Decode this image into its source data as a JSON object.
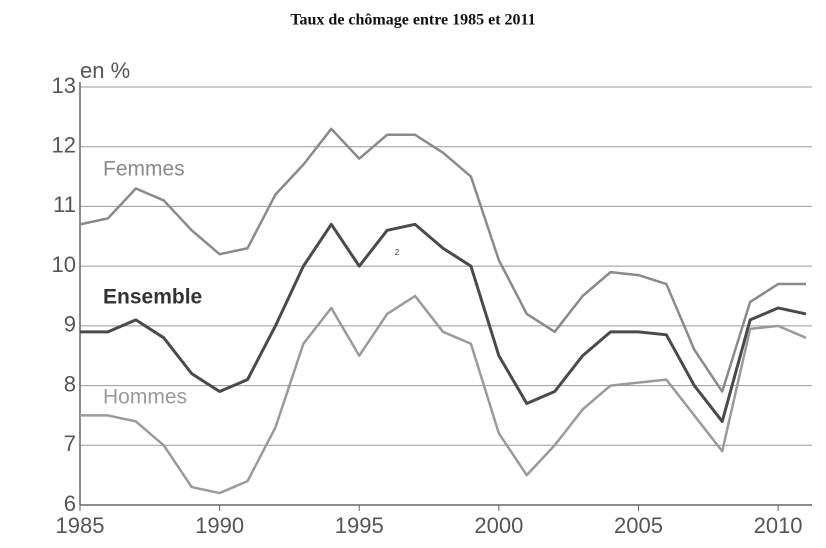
{
  "chart_data": {
    "type": "line",
    "title": "Taux de chômage entre 1985 et 2011",
    "y_label": "en %",
    "annotation": "2",
    "x": [
      1985,
      1986,
      1987,
      1988,
      1989,
      1990,
      1991,
      1992,
      1993,
      1994,
      1995,
      1996,
      1997,
      1998,
      1999,
      2000,
      2001,
      2002,
      2003,
      2004,
      2005,
      2006,
      2007,
      2008,
      2009,
      2010,
      2011
    ],
    "series": [
      {
        "name": "Femmes",
        "color": "#8a8a8a",
        "values": [
          10.7,
          10.8,
          11.3,
          11.1,
          10.6,
          10.2,
          10.3,
          11.2,
          11.7,
          12.3,
          11.8,
          12.2,
          12.2,
          11.9,
          11.5,
          10.1,
          9.2,
          8.9,
          9.5,
          9.9,
          9.85,
          9.7,
          8.6,
          7.9,
          9.4,
          9.7,
          9.7
        ]
      },
      {
        "name": "Ensemble",
        "color": "#4a4a4a",
        "values": [
          8.9,
          8.9,
          9.1,
          8.8,
          8.2,
          7.9,
          8.1,
          9.0,
          10.0,
          10.7,
          10.0,
          10.6,
          10.7,
          10.3,
          10.0,
          8.5,
          7.7,
          7.9,
          8.5,
          8.9,
          8.9,
          8.85,
          8.0,
          7.4,
          9.1,
          9.3,
          9.2
        ]
      },
      {
        "name": "Hommes",
        "color": "#9a9a9a",
        "values": [
          7.5,
          7.5,
          7.4,
          7.0,
          6.3,
          6.2,
          6.4,
          7.3,
          8.7,
          9.3,
          8.5,
          9.2,
          9.5,
          8.9,
          8.7,
          7.2,
          6.5,
          7.0,
          7.6,
          8.0,
          8.05,
          8.1,
          7.5,
          6.9,
          8.95,
          9.0,
          8.8
        ]
      }
    ],
    "xlim": [
      1985,
      2011
    ],
    "xticks": [
      1985,
      1990,
      1995,
      2000,
      2005,
      2010
    ],
    "ylim": [
      6,
      13
    ],
    "yticks": [
      6,
      7,
      8,
      9,
      10,
      11,
      12,
      13
    ],
    "grid": true
  }
}
